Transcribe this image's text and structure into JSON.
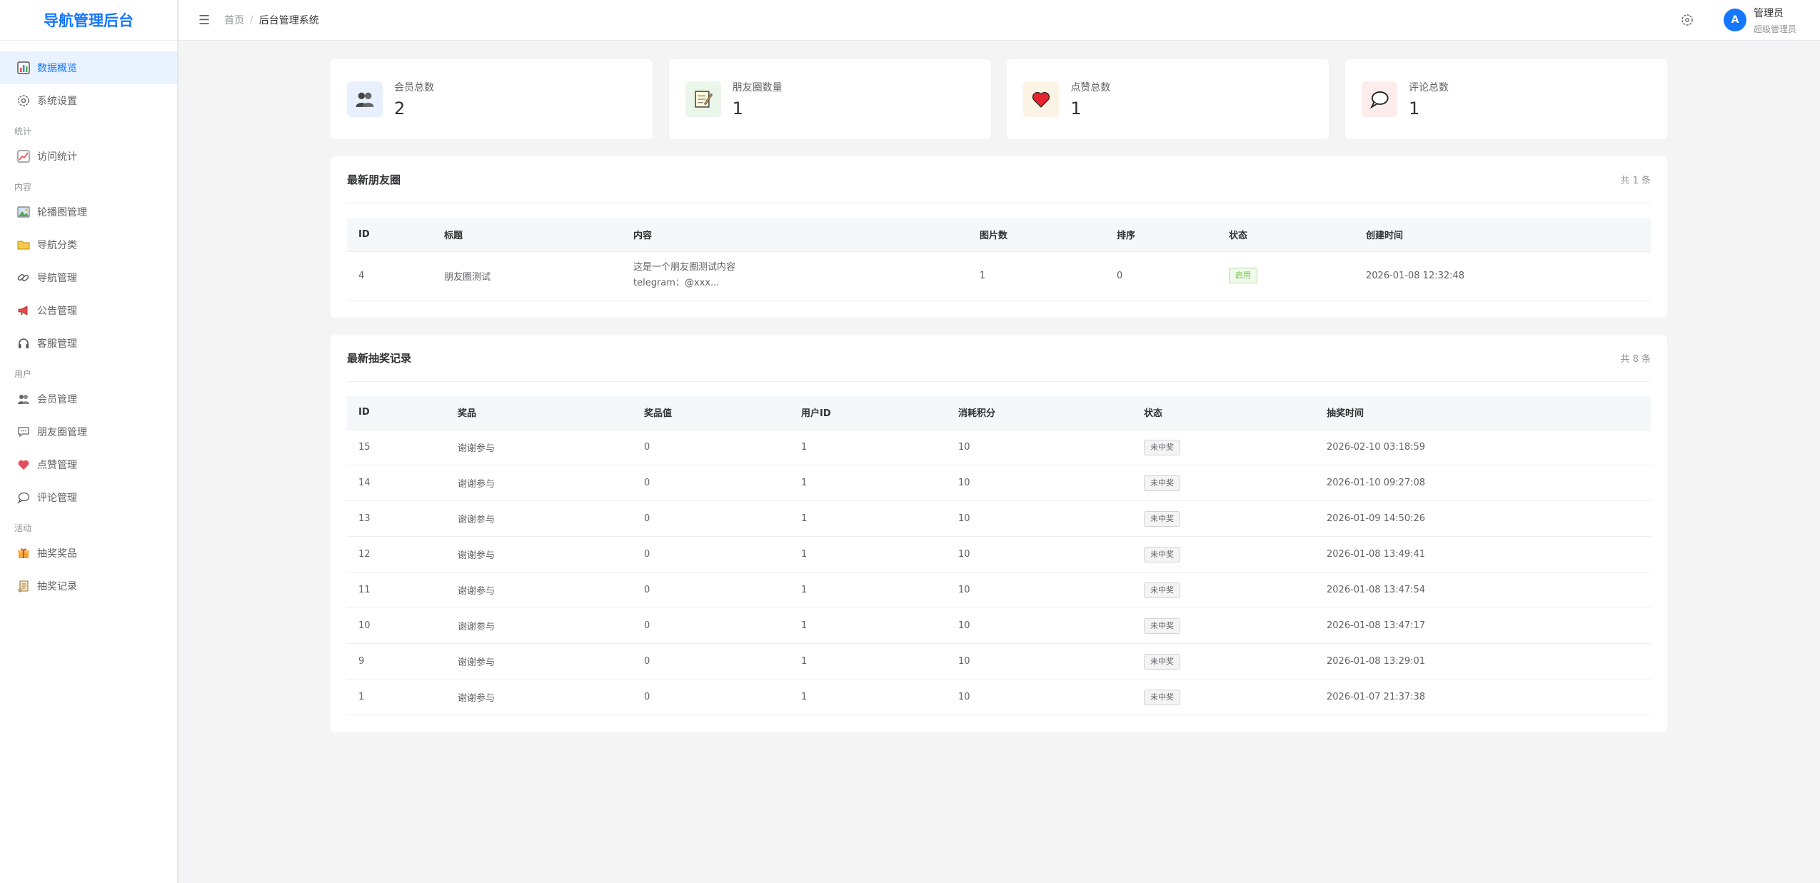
{
  "app": {
    "title": "导航管理后台"
  },
  "sidebar": {
    "items": [
      {
        "label": "数据概览",
        "icon": "chart-icon",
        "active": true
      },
      {
        "label": "系统设置",
        "icon": "gear-icon"
      }
    ],
    "groups": [
      {
        "title": "统计",
        "items": [
          {
            "label": "访问统计",
            "icon": "trend-icon"
          }
        ]
      },
      {
        "title": "内容",
        "items": [
          {
            "label": "轮播图管理",
            "icon": "picture-icon"
          },
          {
            "label": "导航分类",
            "icon": "folder-icon"
          },
          {
            "label": "导航管理",
            "icon": "link-icon"
          },
          {
            "label": "公告管理",
            "icon": "megaphone-icon"
          },
          {
            "label": "客服管理",
            "icon": "headset-icon"
          }
        ]
      },
      {
        "title": "用户",
        "items": [
          {
            "label": "会员管理",
            "icon": "users-icon"
          },
          {
            "label": "朋友圈管理",
            "icon": "chat-icon"
          },
          {
            "label": "点赞管理",
            "icon": "heart-icon"
          },
          {
            "label": "评论管理",
            "icon": "comment-icon"
          }
        ]
      },
      {
        "title": "活动",
        "items": [
          {
            "label": "抽奖奖品",
            "icon": "gift-icon"
          },
          {
            "label": "抽奖记录",
            "icon": "scroll-icon"
          }
        ]
      }
    ]
  },
  "header": {
    "menu_icon": "☰",
    "breadcrumb_home": "首页",
    "breadcrumb_sep": "/",
    "breadcrumb_current": "后台管理系统",
    "avatar_letter": "A",
    "user_name": "管理员",
    "user_role": "超级管理员"
  },
  "stats": [
    {
      "label": "会员总数",
      "value": "2",
      "icon": "users-icon",
      "bg": "#e8f0fe"
    },
    {
      "label": "朋友圈数量",
      "value": "1",
      "icon": "memo-icon",
      "bg": "#eaf6ea"
    },
    {
      "label": "点赞总数",
      "value": "1",
      "icon": "heart-icon",
      "bg": "#fdf3e4"
    },
    {
      "label": "评论总数",
      "value": "1",
      "icon": "comment-icon",
      "bg": "#fdecec"
    }
  ],
  "moments": {
    "title": "最新朋友圈",
    "count": "共 1 条",
    "columns": [
      "ID",
      "标题",
      "内容",
      "图片数",
      "排序",
      "状态",
      "创建时间"
    ],
    "rows": [
      {
        "id": "4",
        "title": "朋友圈测试",
        "content1": "这是一个朋友圈测试内容",
        "content2": "telegram：@xxx...",
        "images": "1",
        "sort": "0",
        "status": "启用",
        "created": "2026-01-08 12:32:48"
      }
    ]
  },
  "lottery": {
    "title": "最新抽奖记录",
    "count": "共 8 条",
    "columns": [
      "ID",
      "奖品",
      "奖品值",
      "用户ID",
      "消耗积分",
      "状态",
      "抽奖时间"
    ],
    "rows": [
      {
        "id": "15",
        "prize": "谢谢参与",
        "value": "0",
        "user": "1",
        "points": "10",
        "status": "未中奖",
        "time": "2026-02-10 03:18:59"
      },
      {
        "id": "14",
        "prize": "谢谢参与",
        "value": "0",
        "user": "1",
        "points": "10",
        "status": "未中奖",
        "time": "2026-01-10 09:27:08"
      },
      {
        "id": "13",
        "prize": "谢谢参与",
        "value": "0",
        "user": "1",
        "points": "10",
        "status": "未中奖",
        "time": "2026-01-09 14:50:26"
      },
      {
        "id": "12",
        "prize": "谢谢参与",
        "value": "0",
        "user": "1",
        "points": "10",
        "status": "未中奖",
        "time": "2026-01-08 13:49:41"
      },
      {
        "id": "11",
        "prize": "谢谢参与",
        "value": "0",
        "user": "1",
        "points": "10",
        "status": "未中奖",
        "time": "2026-01-08 13:47:54"
      },
      {
        "id": "10",
        "prize": "谢谢参与",
        "value": "0",
        "user": "1",
        "points": "10",
        "status": "未中奖",
        "time": "2026-01-08 13:47:17"
      },
      {
        "id": "9",
        "prize": "谢谢参与",
        "value": "0",
        "user": "1",
        "points": "10",
        "status": "未中奖",
        "time": "2026-01-08 13:29:01"
      },
      {
        "id": "1",
        "prize": "谢谢参与",
        "value": "0",
        "user": "1",
        "points": "10",
        "status": "未中奖",
        "time": "2026-01-07 21:37:38"
      }
    ]
  }
}
